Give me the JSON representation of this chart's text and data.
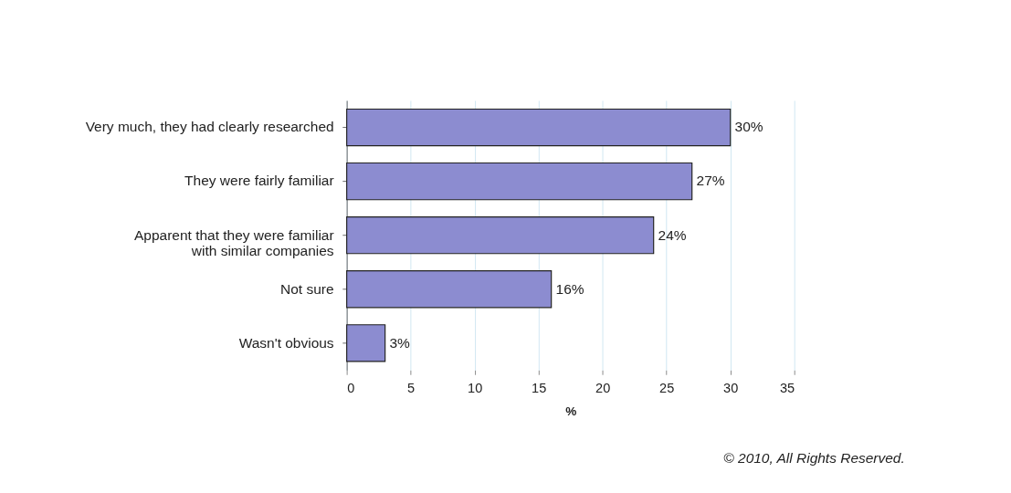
{
  "chart_data": {
    "type": "bar",
    "orientation": "horizontal",
    "categories": [
      "Very much, they had clearly researched",
      "They were fairly familiar",
      "Apparent that they were familiar\nwith similar companies",
      "Not sure",
      "Wasn't obvious"
    ],
    "values": [
      30,
      27,
      24,
      16,
      3
    ],
    "value_labels": [
      "30%",
      "27%",
      "24%",
      "16%",
      "3%"
    ],
    "color": "#8c8cd0",
    "xlabel": "%",
    "xlim": [
      0,
      35
    ],
    "xticks": [
      0,
      5,
      10,
      15,
      20,
      25,
      30,
      35
    ],
    "grid": "x",
    "annotations": [
      "© 2010, All Rights Reserved."
    ]
  }
}
